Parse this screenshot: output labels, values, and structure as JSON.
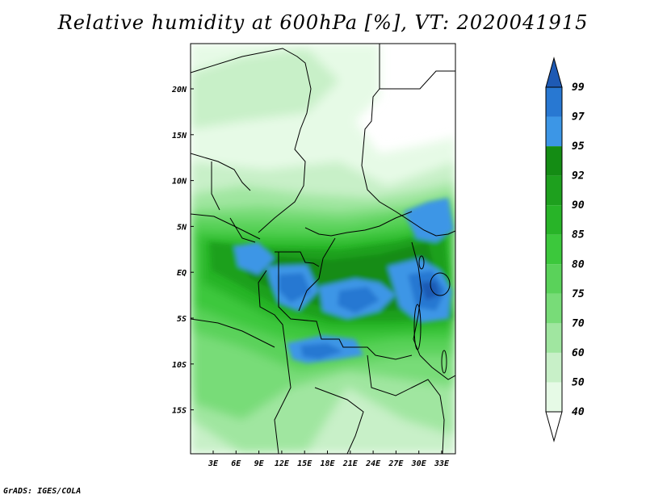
{
  "title": "Relative humidity at 600hPa [%], VT: 2020041915",
  "credit": "GrADS: IGES/COLA",
  "map": {
    "lat_labels": [
      "20N",
      "15N",
      "10N",
      "5N",
      "EQ",
      "5S",
      "10S",
      "15S"
    ],
    "lon_labels": [
      "3E",
      "6E",
      "9E",
      "12E",
      "15E",
      "18E",
      "21E",
      "24E",
      "27E",
      "30E",
      "33E"
    ]
  },
  "colorbar": {
    "levels": [
      "40",
      "50",
      "60",
      "70",
      "75",
      "80",
      "85",
      "90",
      "92",
      "95",
      "97",
      "99"
    ],
    "colors": [
      "#e6fae6",
      "#c8f0c8",
      "#a0e6a0",
      "#78dc78",
      "#5ad25a",
      "#3cc83c",
      "#28b428",
      "#1ea01e",
      "#148c14",
      "#3c96e6",
      "#2878d2",
      "#1e5ab4"
    ],
    "under_color": "#ffffff",
    "over_color": "#1e5ab4"
  }
}
